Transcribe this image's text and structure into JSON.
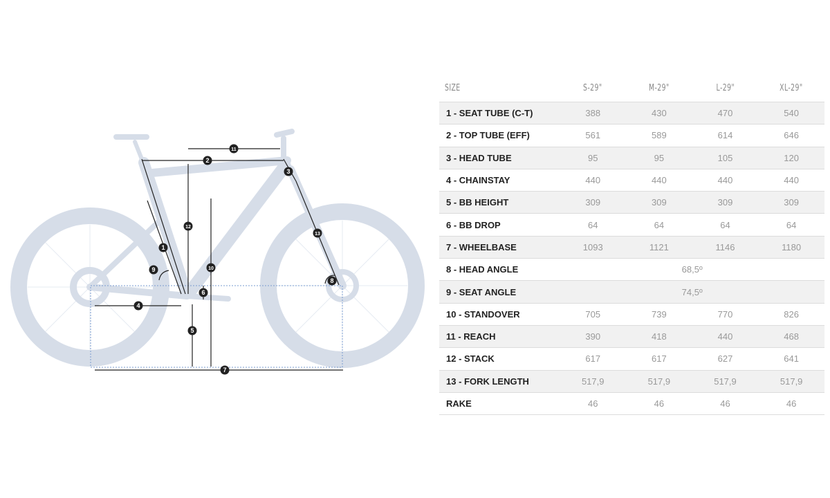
{
  "colors": {
    "bike": "#d6dde8",
    "annotation": "#222222",
    "dotted_guide": "#7a9bd0",
    "stripe": "#f1f1f1"
  },
  "diagram": {
    "markers": [
      "1",
      "2",
      "3",
      "4",
      "5",
      "6",
      "7",
      "8",
      "9",
      "10",
      "11",
      "12",
      "13"
    ]
  },
  "table": {
    "headers": [
      "SIZE",
      "S-29\"",
      "M-29\"",
      "L-29\"",
      "XL-29\""
    ],
    "rows": [
      {
        "label": "1 - SEAT TUBE (C-T)",
        "values": [
          "388",
          "430",
          "470",
          "540"
        ]
      },
      {
        "label": "2 - TOP TUBE (EFF)",
        "values": [
          "561",
          "589",
          "614",
          "646"
        ]
      },
      {
        "label": "3 - HEAD TUBE",
        "values": [
          "95",
          "95",
          "105",
          "120"
        ]
      },
      {
        "label": "4 - CHAINSTAY",
        "values": [
          "440",
          "440",
          "440",
          "440"
        ]
      },
      {
        "label": "5 - BB HEIGHT",
        "values": [
          "309",
          "309",
          "309",
          "309"
        ]
      },
      {
        "label": "6 - BB DROP",
        "values": [
          "64",
          "64",
          "64",
          "64"
        ]
      },
      {
        "label": "7 - WHEELBASE",
        "values": [
          "1093",
          "1121",
          "1146",
          "1180"
        ]
      },
      {
        "label": "8 - HEAD ANGLE",
        "values": [
          "68,5º"
        ]
      },
      {
        "label": "9 - SEAT ANGLE",
        "values": [
          "74,5º"
        ]
      },
      {
        "label": "10 - STANDOVER",
        "values": [
          "705",
          "739",
          "770",
          "826"
        ]
      },
      {
        "label": "11 - REACH",
        "values": [
          "390",
          "418",
          "440",
          "468"
        ]
      },
      {
        "label": "12 - STACK",
        "values": [
          "617",
          "617",
          "627",
          "641"
        ]
      },
      {
        "label": "13 - FORK LENGTH",
        "values": [
          "517,9",
          "517,9",
          "517,9",
          "517,9"
        ]
      },
      {
        "label": "RAKE",
        "values": [
          "46",
          "46",
          "46",
          "46"
        ]
      }
    ]
  }
}
